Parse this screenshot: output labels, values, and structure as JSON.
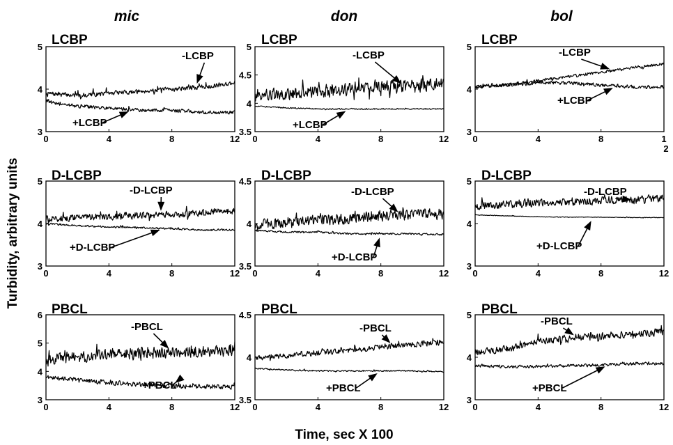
{
  "chart_data": [
    {
      "type": "line",
      "column": "mic",
      "title": "LCBP",
      "ylim": [
        3,
        5
      ],
      "yticks": [
        "3",
        "4",
        "5"
      ],
      "xlim": [
        0,
        12
      ],
      "xticks": [
        "0",
        "4",
        "8",
        "12"
      ],
      "series": [
        {
          "name": "-LCBP",
          "x": [
            0,
            2,
            4,
            6,
            8,
            10,
            12
          ],
          "y": [
            3.9,
            3.85,
            3.9,
            3.95,
            4.0,
            4.05,
            4.15
          ],
          "noise": 0.08
        },
        {
          "name": "+LCBP",
          "x": [
            0,
            2,
            4,
            6,
            8,
            10,
            12
          ],
          "y": [
            3.7,
            3.6,
            3.55,
            3.5,
            3.5,
            3.45,
            3.45
          ],
          "noise": 0.06
        }
      ],
      "annotations": [
        {
          "text": "-LCBP",
          "series": "-LCBP",
          "at_x": 9.5
        },
        {
          "text": "+LCBP",
          "series": "+LCBP",
          "at_x": 5.5
        }
      ]
    },
    {
      "type": "line",
      "column": "don",
      "title": "LCBP",
      "ylim": [
        3.5,
        5
      ],
      "yticks": [
        "3.5",
        "4",
        "4.5",
        "5"
      ],
      "xlim": [
        0,
        12
      ],
      "xticks": [
        "0",
        "4",
        "8",
        "12"
      ],
      "series": [
        {
          "name": "-LCBP",
          "x": [
            0,
            2,
            4,
            6,
            8,
            10,
            12
          ],
          "y": [
            4.15,
            4.15,
            4.2,
            4.25,
            4.3,
            4.3,
            4.35
          ],
          "noise": 0.17
        },
        {
          "name": "+LCBP",
          "x": [
            0,
            2,
            4,
            6,
            8,
            10,
            12
          ],
          "y": [
            3.95,
            3.92,
            3.9,
            3.9,
            3.9,
            3.9,
            3.9
          ],
          "noise": 0.015
        }
      ],
      "annotations": [
        {
          "text": "-LCBP",
          "series": "-LCBP",
          "at_x": 9.5
        },
        {
          "text": "+LCBP",
          "series": "+LCBP",
          "at_x": 6
        }
      ]
    },
    {
      "type": "line",
      "column": "bol",
      "title": "LCBP",
      "ylim": [
        3,
        5
      ],
      "yticks": [
        "3",
        "4",
        "5"
      ],
      "xlim": [
        0,
        12
      ],
      "xticks": [
        "0",
        "4",
        "8",
        "1\n2"
      ],
      "series": [
        {
          "name": "-LCBP",
          "x": [
            0,
            2,
            4,
            6,
            8,
            10,
            12
          ],
          "y": [
            4.05,
            4.1,
            4.2,
            4.3,
            4.4,
            4.5,
            4.6
          ],
          "noise": 0.05
        },
        {
          "name": "+LCBP",
          "x": [
            0,
            2,
            4,
            6,
            8,
            10,
            12
          ],
          "y": [
            4.05,
            4.1,
            4.15,
            4.15,
            4.1,
            4.05,
            4.05
          ],
          "noise": 0.06
        }
      ],
      "annotations": [
        {
          "text": "-LCBP",
          "series": "-LCBP",
          "at_x": 8.8
        },
        {
          "text": "+LCBP",
          "series": "+LCBP",
          "at_x": 9
        }
      ]
    },
    {
      "type": "line",
      "column": "mic",
      "title": "D-LCBP",
      "ylim": [
        3,
        5
      ],
      "yticks": [
        "3",
        "4",
        "5"
      ],
      "xlim": [
        0,
        12
      ],
      "xticks": [
        "0",
        "4",
        "8",
        "12"
      ],
      "series": [
        {
          "name": "-D-LCBP",
          "x": [
            0,
            2,
            4,
            6,
            8,
            10,
            12
          ],
          "y": [
            4.1,
            4.15,
            4.15,
            4.2,
            4.2,
            4.25,
            4.3
          ],
          "noise": 0.12
        },
        {
          "name": "+D-LCBP",
          "x": [
            0,
            2,
            4,
            6,
            8,
            10,
            12
          ],
          "y": [
            4.0,
            3.95,
            3.92,
            3.9,
            3.88,
            3.85,
            3.85
          ],
          "noise": 0.03
        }
      ],
      "annotations": [
        {
          "text": "-D-LCBP",
          "series": "-D-LCBP",
          "at_x": 7.3
        },
        {
          "text": "+D-LCBP",
          "series": "+D-LCBP",
          "at_x": 7.5
        }
      ]
    },
    {
      "type": "line",
      "column": "don",
      "title": "D-LCBP",
      "ylim": [
        3.5,
        4.5
      ],
      "yticks": [
        "3.5",
        "4",
        "4.5"
      ],
      "xlim": [
        0,
        12
      ],
      "xticks": [
        "0",
        "4",
        "8",
        "12"
      ],
      "series": [
        {
          "name": "-D-LCBP",
          "x": [
            0,
            2,
            4,
            6,
            8,
            10,
            12
          ],
          "y": [
            3.98,
            4.0,
            4.03,
            4.06,
            4.1,
            4.1,
            4.12
          ],
          "noise": 0.1
        },
        {
          "name": "+D-LCBP",
          "x": [
            0,
            2,
            4,
            6,
            8,
            10,
            12
          ],
          "y": [
            3.92,
            3.9,
            3.9,
            3.88,
            3.88,
            3.88,
            3.87
          ],
          "noise": 0.015
        }
      ],
      "annotations": [
        {
          "text": "-D-LCBP",
          "series": "-D-LCBP",
          "at_x": 9.3
        },
        {
          "text": "+D-LCBP",
          "series": "+D-LCBP",
          "at_x": 8
        }
      ]
    },
    {
      "type": "line",
      "column": "bol",
      "title": "D-LCBP",
      "ylim": [
        3,
        5
      ],
      "yticks": [
        "3",
        "4",
        "5"
      ],
      "xlim": [
        0,
        12
      ],
      "xticks": [
        "0",
        "4",
        "8",
        "12"
      ],
      "series": [
        {
          "name": "-D-LCBP",
          "x": [
            0,
            2,
            4,
            6,
            8,
            10,
            12
          ],
          "y": [
            4.4,
            4.45,
            4.5,
            4.5,
            4.55,
            4.55,
            4.6
          ],
          "noise": 0.14
        },
        {
          "name": "+D-LCBP",
          "x": [
            0,
            2,
            4,
            6,
            8,
            10,
            12
          ],
          "y": [
            4.2,
            4.18,
            4.16,
            4.15,
            4.15,
            4.14,
            4.14
          ],
          "noise": 0.01
        }
      ],
      "annotations": [
        {
          "text": "-D-LCBP",
          "series": "-D-LCBP",
          "at_x": 10.2
        },
        {
          "text": "+D-LCBP",
          "series": "+D-LCBP",
          "at_x": 7.5
        }
      ]
    },
    {
      "type": "line",
      "column": "mic",
      "title": "PBCL",
      "ylim": [
        3,
        6
      ],
      "yticks": [
        "3",
        "4",
        "5",
        "6"
      ],
      "xlim": [
        0,
        12
      ],
      "xticks": [
        "0",
        "4",
        "8",
        "12"
      ],
      "series": [
        {
          "name": "-PBCL",
          "x": [
            0,
            2,
            4,
            6,
            8,
            10,
            12
          ],
          "y": [
            4.4,
            4.5,
            4.6,
            4.6,
            4.7,
            4.7,
            4.75
          ],
          "noise": 0.3
        },
        {
          "name": "+PBCL",
          "x": [
            0,
            2,
            4,
            6,
            8,
            10,
            12
          ],
          "y": [
            3.8,
            3.7,
            3.6,
            3.55,
            3.5,
            3.45,
            3.45
          ],
          "noise": 0.12
        }
      ],
      "annotations": [
        {
          "text": "-PBCL",
          "series": "-PBCL",
          "at_x": 8
        },
        {
          "text": "+PBCL",
          "series": "+PBCL",
          "at_x": 8
        }
      ]
    },
    {
      "type": "line",
      "column": "don",
      "title": "PBCL",
      "ylim": [
        3.5,
        4.5
      ],
      "yticks": [
        "3.5",
        "4",
        "4.5"
      ],
      "xlim": [
        0,
        12
      ],
      "xticks": [
        "0",
        "4",
        "8",
        "12"
      ],
      "series": [
        {
          "name": "-PBCL",
          "x": [
            0,
            2,
            4,
            6,
            8,
            10,
            12
          ],
          "y": [
            4.0,
            4.02,
            4.05,
            4.08,
            4.12,
            4.15,
            4.18
          ],
          "noise": 0.05
        },
        {
          "name": "+PBCL",
          "x": [
            0,
            2,
            4,
            6,
            8,
            10,
            12
          ],
          "y": [
            3.87,
            3.85,
            3.84,
            3.84,
            3.84,
            3.84,
            3.83
          ],
          "noise": 0.012
        }
      ],
      "annotations": [
        {
          "text": "-PBCL",
          "series": "-PBCL",
          "at_x": 8.8
        },
        {
          "text": "+PBCL",
          "series": "+PBCL",
          "at_x": 8
        }
      ]
    },
    {
      "type": "line",
      "column": "bol",
      "title": "PBCL",
      "ylim": [
        3,
        5
      ],
      "yticks": [
        "3",
        "4",
        "5"
      ],
      "xlim": [
        0,
        12
      ],
      "xticks": [
        "0",
        "4",
        "8",
        "12"
      ],
      "series": [
        {
          "name": "-PBCL",
          "x": [
            0,
            2,
            4,
            6,
            8,
            10,
            12
          ],
          "y": [
            4.1,
            4.2,
            4.35,
            4.45,
            4.5,
            4.55,
            4.6
          ],
          "noise": 0.13
        },
        {
          "name": "+PBCL",
          "x": [
            0,
            2,
            4,
            6,
            8,
            10,
            12
          ],
          "y": [
            3.8,
            3.78,
            3.78,
            3.8,
            3.82,
            3.85,
            3.85
          ],
          "noise": 0.05
        }
      ],
      "annotations": [
        {
          "text": "-PBCL",
          "series": "-PBCL",
          "at_x": 6.5
        },
        {
          "text": "+PBCL",
          "series": "+PBCL",
          "at_x": 8.5
        }
      ]
    }
  ],
  "columns": [
    "mic",
    "don",
    "bol"
  ],
  "xlabel": "Time, sec X 100",
  "ylabel": "Turbidity, arbitrary units",
  "grid": false,
  "line_color": "#000000"
}
